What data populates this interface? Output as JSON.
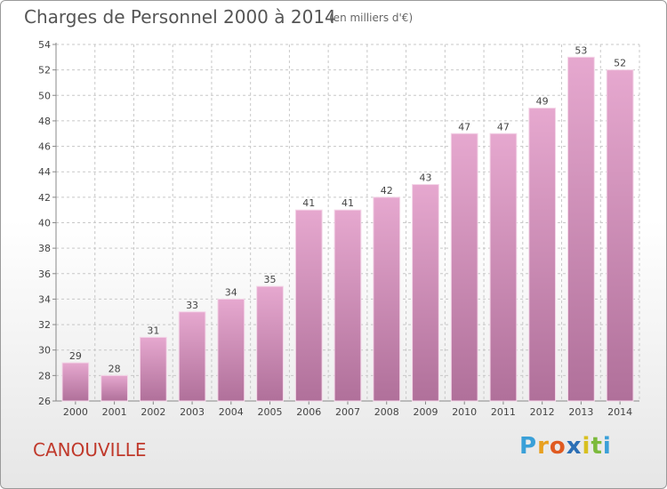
{
  "header": {
    "title": "Charges de Personnel 2000 à 2014",
    "subtitle": "(en milliers d'€)"
  },
  "footer": {
    "commune": "CANOUVILLE"
  },
  "logo": {
    "text": "Proxiti",
    "letters": [
      {
        "char": "P",
        "color": "#3aa0d8"
      },
      {
        "char": "r",
        "color": "#e8a020"
      },
      {
        "char": "o",
        "color": "#e05a20"
      },
      {
        "char": "x",
        "color": "#2c6fb5"
      },
      {
        "char": "i",
        "color": "#d8c020"
      },
      {
        "char": "t",
        "color": "#7cba3c"
      },
      {
        "char": "i",
        "color": "#3aa0d8"
      }
    ]
  },
  "colors": {
    "bar_top": "#e6a8cf",
    "bar_bottom": "#b0709a",
    "bar_edge": "#f4d6e8",
    "grid": "#c8c8c8",
    "text": "#444444"
  },
  "chart_data": {
    "type": "bar",
    "categories": [
      "2000",
      "2001",
      "2002",
      "2003",
      "2004",
      "2005",
      "2006",
      "2007",
      "2008",
      "2009",
      "2010",
      "2011",
      "2012",
      "2013",
      "2014"
    ],
    "values": [
      29,
      28,
      31,
      33,
      34,
      35,
      41,
      41,
      42,
      43,
      47,
      47,
      49,
      53,
      52
    ],
    "title": "Charges de Personnel 2000 à 2014",
    "subtitle": "(en milliers d'€)",
    "ylim": [
      26,
      54
    ],
    "yticks": [
      26,
      28,
      30,
      32,
      34,
      36,
      38,
      40,
      42,
      44,
      46,
      48,
      50,
      52,
      54
    ],
    "grid": true,
    "data_labels": true
  }
}
